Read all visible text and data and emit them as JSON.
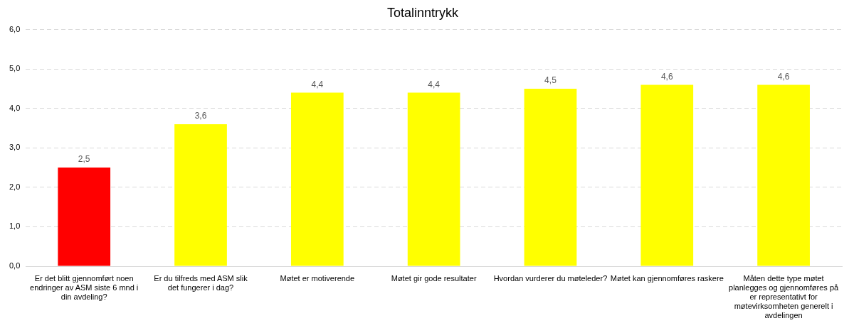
{
  "chart_data": {
    "type": "bar",
    "title": "Totalinntrykk",
    "categories": [
      "Er det blitt gjennomført noen endringer av ASM siste 6 mnd i din avdeling?",
      "Er du tilfreds med ASM slik det fungerer i dag?",
      "Møtet er motiverende",
      "Møtet gir gode resultater",
      "Hvordan vurderer du møteleder?",
      "Møtet kan gjennomføres raskere",
      "Måten dette type møtet planlegges og gjennomføres på er representativt for møtevirksomheten generelt i avdelingen"
    ],
    "values": [
      2.5,
      3.6,
      4.4,
      4.4,
      4.5,
      4.6,
      4.6
    ],
    "colors": [
      "#ff0000",
      "#ffff00",
      "#ffff00",
      "#ffff00",
      "#ffff00",
      "#ffff00",
      "#ffff00"
    ],
    "value_labels": [
      "2,5",
      "3,6",
      "4,4",
      "4,4",
      "4,5",
      "4,6",
      "4,6"
    ],
    "ylim": [
      0,
      6
    ],
    "yticks": [
      {
        "value": 0,
        "label": "0,0"
      },
      {
        "value": 1,
        "label": "1,0"
      },
      {
        "value": 2,
        "label": "2,0"
      },
      {
        "value": 3,
        "label": "3,0"
      },
      {
        "value": 4,
        "label": "4,0"
      },
      {
        "value": 5,
        "label": "5,0"
      },
      {
        "value": 6,
        "label": "6,0"
      }
    ],
    "grid": "y",
    "legend": false
  }
}
